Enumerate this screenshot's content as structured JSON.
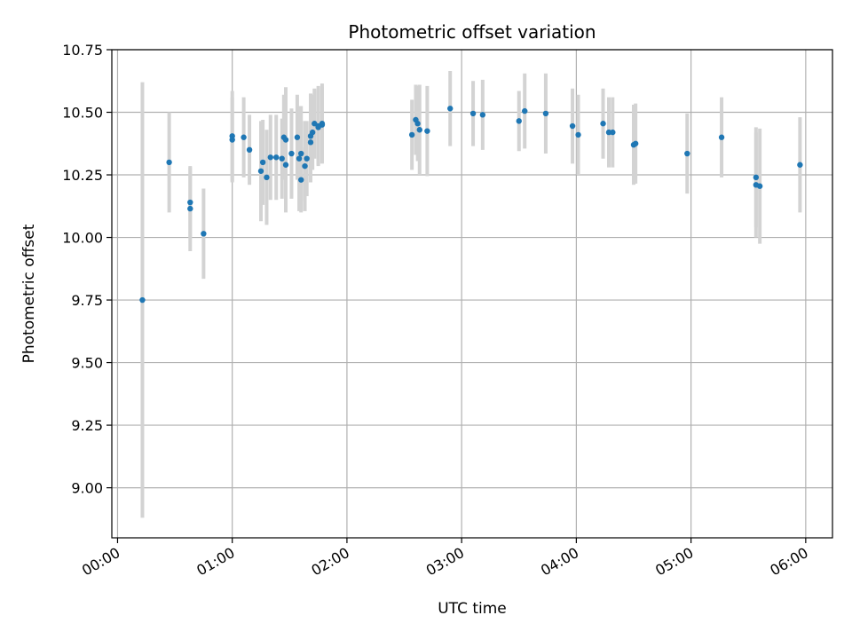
{
  "chart_data": {
    "type": "scatter",
    "title": "Photometric offset variation",
    "xlabel": "UTC time",
    "ylabel": "Photometric offset",
    "xlim": [
      "-00:03",
      "06:14"
    ],
    "ylim": [
      8.8,
      10.75
    ],
    "grid": true,
    "xticks": [
      "00:00",
      "01:00",
      "02:00",
      "03:00",
      "04:00",
      "05:00",
      "06:00"
    ],
    "yticks": [
      "9.00",
      "9.25",
      "9.50",
      "9.75",
      "10.00",
      "10.25",
      "10.50",
      "10.75"
    ],
    "colors": {
      "point": "#1f77b4",
      "errorbar": "#d3d3d3",
      "grid": "#b0b0b0"
    },
    "series": [
      {
        "x": [
          "00:13",
          "00:27",
          "00:38",
          "00:38",
          "00:45",
          "01:00",
          "01:00",
          "01:06",
          "01:09",
          "01:15",
          "01:16",
          "01:18",
          "01:20",
          "01:23",
          "01:26",
          "01:27",
          "01:28",
          "01:28",
          "01:31",
          "01:34",
          "01:35",
          "01:36",
          "01:36",
          "01:38",
          "01:39",
          "01:41",
          "01:41",
          "01:42",
          "01:43",
          "01:45",
          "01:45",
          "01:47",
          "01:47",
          "02:34",
          "02:36",
          "02:38",
          "02:37",
          "02:42",
          "02:54",
          "03:06",
          "03:11",
          "03:30",
          "03:33",
          "03:44",
          "03:58",
          "04:01",
          "04:14",
          "04:17",
          "04:19",
          "04:30",
          "04:31",
          "04:58",
          "05:16",
          "05:34",
          "05:34",
          "05:36",
          "05:57"
        ],
        "y": [
          9.75,
          10.3,
          10.115,
          10.14,
          10.015,
          10.39,
          10.405,
          10.4,
          10.35,
          10.265,
          10.3,
          10.24,
          10.32,
          10.32,
          10.315,
          10.4,
          10.29,
          10.39,
          10.335,
          10.4,
          10.315,
          10.335,
          10.23,
          10.285,
          10.315,
          10.38,
          10.405,
          10.42,
          10.455,
          10.44,
          10.445,
          10.45,
          10.455,
          10.41,
          10.47,
          10.43,
          10.455,
          10.425,
          10.515,
          10.495,
          10.49,
          10.465,
          10.505,
          10.495,
          10.445,
          10.41,
          10.455,
          10.42,
          10.42,
          10.37,
          10.375,
          10.335,
          10.4,
          10.24,
          10.21,
          10.205,
          10.29
        ],
        "yerr": [
          0.87,
          0.2,
          0.17,
          0.14,
          0.18,
          0.17,
          0.18,
          0.16,
          0.14,
          0.2,
          0.17,
          0.19,
          0.17,
          0.17,
          0.16,
          0.17,
          0.19,
          0.21,
          0.18,
          0.17,
          0.21,
          0.19,
          0.13,
          0.18,
          0.15,
          0.16,
          0.17,
          0.15,
          0.14,
          0.15,
          0.16,
          0.15,
          0.16,
          0.14,
          0.14,
          0.18,
          0.15,
          0.18,
          0.15,
          0.13,
          0.14,
          0.12,
          0.15,
          0.16,
          0.15,
          0.16,
          0.14,
          0.14,
          0.14,
          0.16,
          0.16,
          0.16,
          0.16,
          0.2,
          0.21,
          0.23,
          0.19
        ]
      }
    ]
  }
}
